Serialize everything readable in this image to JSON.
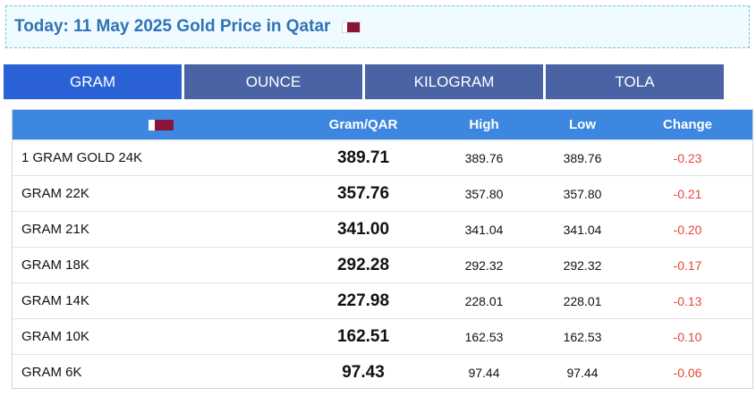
{
  "header": {
    "title": "Today: 11 May 2025 Gold Price in Qatar",
    "flag_icon": "qatar-flag-icon",
    "flag_colors": {
      "maroon": "#8a1538",
      "white": "#ffffff"
    }
  },
  "tabs": [
    {
      "label": "GRAM",
      "active": true
    },
    {
      "label": "OUNCE",
      "active": false
    },
    {
      "label": "KILOGRAM",
      "active": false
    },
    {
      "label": "TOLA",
      "active": false
    }
  ],
  "table": {
    "columns": {
      "price": "Gram/QAR",
      "high": "High",
      "low": "Low",
      "change": "Change"
    },
    "rows": [
      {
        "name": "1 GRAM GOLD 24K",
        "price": "389.71",
        "high": "389.76",
        "low": "389.76",
        "change": "-0.23"
      },
      {
        "name": "GRAM 22K",
        "price": "357.76",
        "high": "357.80",
        "low": "357.80",
        "change": "-0.21"
      },
      {
        "name": "GRAM 21K",
        "price": "341.00",
        "high": "341.04",
        "low": "341.04",
        "change": "-0.20"
      },
      {
        "name": "GRAM 18K",
        "price": "292.28",
        "high": "292.32",
        "low": "292.32",
        "change": "-0.17"
      },
      {
        "name": "GRAM 14K",
        "price": "227.98",
        "high": "228.01",
        "low": "228.01",
        "change": "-0.13"
      },
      {
        "name": "GRAM 10K",
        "price": "162.51",
        "high": "162.53",
        "low": "162.53",
        "change": "-0.10"
      },
      {
        "name": "GRAM 6K",
        "price": "97.43",
        "high": "97.44",
        "low": "97.44",
        "change": "-0.06"
      }
    ]
  },
  "colors": {
    "title": "#2f73b7",
    "tab_active": "#2a62d6",
    "tab_inactive": "#4a63a5",
    "table_header": "#3d87e0",
    "negative_change": "#e5473b"
  }
}
